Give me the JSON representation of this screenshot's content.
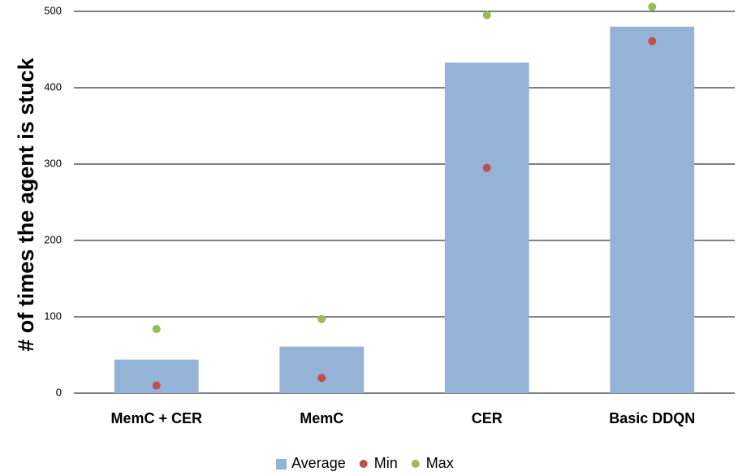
{
  "chart_data": {
    "type": "bar",
    "y_label": "# of times the agent is stuck",
    "categories": [
      "MemC + CER",
      "MemC",
      "CER",
      "Basic DDQN"
    ],
    "series": [
      {
        "name": "Average",
        "type": "bar",
        "color": "#95b3d7",
        "values": [
          44,
          61,
          433,
          480
        ]
      },
      {
        "name": "Min",
        "type": "scatter",
        "color": "#c0504d",
        "values": [
          10,
          20,
          295,
          461
        ]
      },
      {
        "name": "Max",
        "type": "scatter",
        "color": "#9bbb59",
        "values": [
          84,
          97,
          495,
          506
        ]
      }
    ],
    "ylim": [
      0,
      500
    ],
    "yticks": [
      0,
      100,
      200,
      300,
      400,
      500
    ],
    "grid": true,
    "legend": "bottom"
  }
}
